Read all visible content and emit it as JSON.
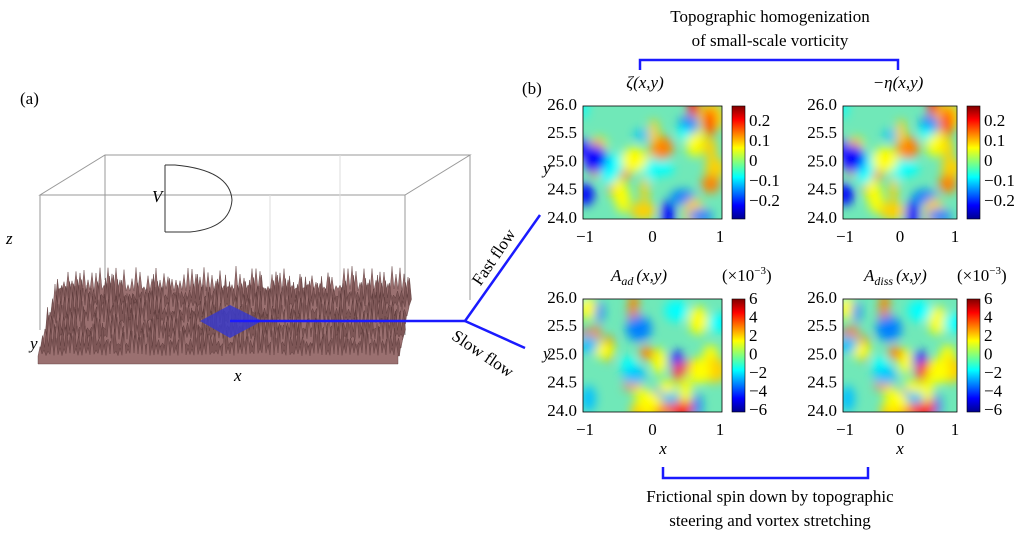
{
  "panel_a": {
    "label": "(a)",
    "profile_label": "V",
    "axis_labels": {
      "x": "x",
      "y": "y",
      "z": "z"
    }
  },
  "flow_labels": {
    "fast": "Fast flow",
    "slow": "Slow flow"
  },
  "top_caption": [
    "Topographic homogenization",
    "of small-scale vorticity"
  ],
  "bottom_caption": [
    "Frictional spin down by topographic",
    "steering and vortex stretching"
  ],
  "panel_b": {
    "label": "(b)",
    "y_label": "y",
    "x_label": "x",
    "yticks": [
      "26.0",
      "25.5",
      "25.0",
      "24.5",
      "24.0"
    ],
    "xticks": [
      "−1",
      "0",
      "1"
    ],
    "maps": [
      {
        "title": "ζ(x,y)",
        "colorbar": [
          "0.2",
          "0.1",
          "0",
          "−0.1",
          "−0.2"
        ]
      },
      {
        "title": "−η(x,y)",
        "colorbar": [
          "0.2",
          "0.1",
          "0",
          "−0.1",
          "−0.2"
        ]
      },
      {
        "title": "A",
        "title_sub": "ad",
        "title_rest": "(x,y)",
        "scale": "(×10",
        "scale_exp": "−3",
        "scale_end": ")",
        "colorbar": [
          "6",
          "4",
          "2",
          "0",
          "−2",
          "−4",
          "−6"
        ]
      },
      {
        "title": "A",
        "title_sub": "diss",
        "title_rest": "(x,y)",
        "scale": "(×10",
        "scale_exp": "−3",
        "scale_end": ")",
        "colorbar": [
          "6",
          "4",
          "2",
          "0",
          "−2",
          "−4",
          "−6"
        ]
      }
    ]
  }
}
